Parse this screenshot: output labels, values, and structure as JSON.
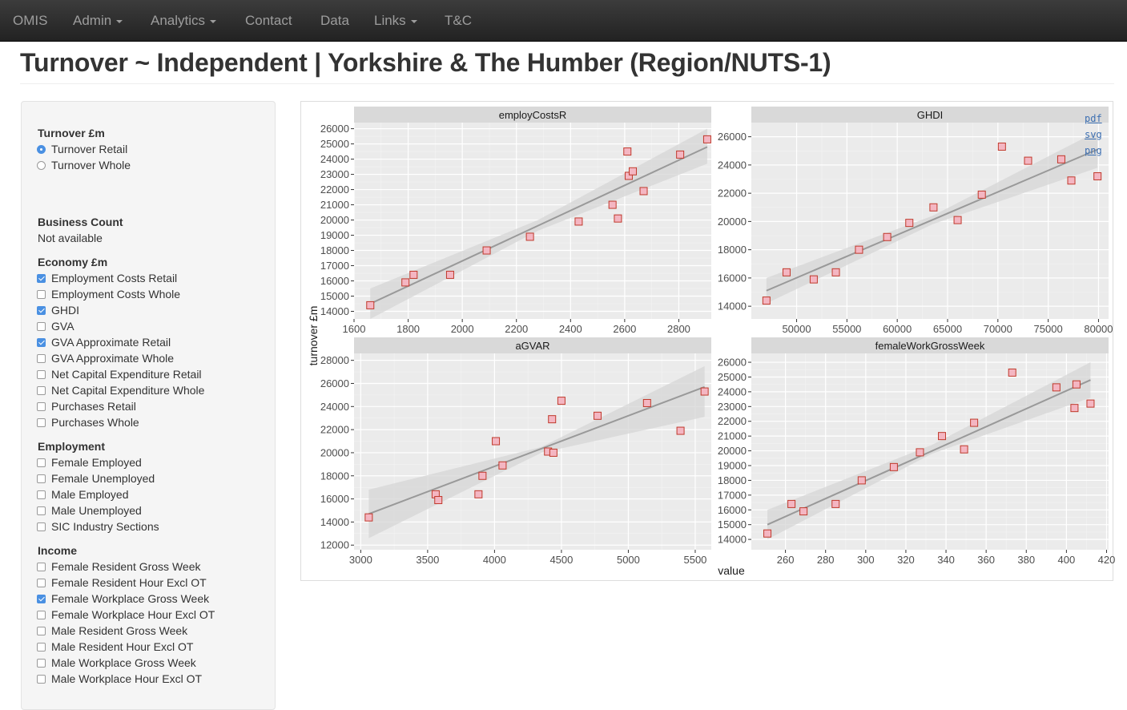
{
  "navbar": {
    "items": [
      {
        "label": "OMIS",
        "dropdown": false
      },
      {
        "label": "Admin",
        "dropdown": true
      },
      {
        "label": "Analytics",
        "dropdown": true
      },
      {
        "label": "Contact",
        "dropdown": false
      },
      {
        "label": "Data",
        "dropdown": false
      },
      {
        "label": "Links",
        "dropdown": true
      },
      {
        "label": "T&C",
        "dropdown": false
      }
    ]
  },
  "page_title": "Turnover ~ Independent | Yorkshire & The Humber (Region/NUTS-1)",
  "sidebar": {
    "turnover": {
      "heading": "Turnover £m",
      "options": [
        {
          "label": "Turnover Retail",
          "selected": true
        },
        {
          "label": "Turnover Whole",
          "selected": false
        }
      ]
    },
    "business_count": {
      "heading": "Business Count",
      "note": "Not available"
    },
    "economy": {
      "heading": "Economy £m",
      "options": [
        {
          "label": "Employment Costs Retail",
          "checked": true
        },
        {
          "label": "Employment Costs Whole",
          "checked": false
        },
        {
          "label": "GHDI",
          "checked": true
        },
        {
          "label": "GVA",
          "checked": false
        },
        {
          "label": "GVA Approximate Retail",
          "checked": true
        },
        {
          "label": "GVA Approximate Whole",
          "checked": false
        },
        {
          "label": "Net Capital Expenditure Retail",
          "checked": false
        },
        {
          "label": "Net Capital Expenditure Whole",
          "checked": false
        },
        {
          "label": "Purchases Retail",
          "checked": false
        },
        {
          "label": "Purchases Whole",
          "checked": false
        }
      ]
    },
    "employment": {
      "heading": "Employment",
      "options": [
        {
          "label": "Female Employed",
          "checked": false
        },
        {
          "label": "Female Unemployed",
          "checked": false
        },
        {
          "label": "Male Employed",
          "checked": false
        },
        {
          "label": "Male Unemployed",
          "checked": false
        },
        {
          "label": "SIC Industry Sections",
          "checked": false
        }
      ]
    },
    "income": {
      "heading": "Income",
      "options": [
        {
          "label": "Female Resident Gross Week",
          "checked": false
        },
        {
          "label": "Female Resident Hour Excl OT",
          "checked": false
        },
        {
          "label": "Female Workplace Gross Week",
          "checked": true
        },
        {
          "label": "Female Workplace Hour Excl OT",
          "checked": false
        },
        {
          "label": "Male Resident Gross Week",
          "checked": false
        },
        {
          "label": "Male Resident Hour Excl OT",
          "checked": false
        },
        {
          "label": "Male Workplace Gross Week",
          "checked": false
        },
        {
          "label": "Male Workplace Hour Excl OT",
          "checked": false
        }
      ]
    }
  },
  "downloads": {
    "pdf": "pdf",
    "svg": "svg",
    "png": "png"
  },
  "chart_data": {
    "type": "scatter",
    "xlabel": "value",
    "ylabel": "turnover £m",
    "point_fill": "#f4b6c2",
    "point_stroke": "#c0392b",
    "line_color": "#999999",
    "band_color": "#d5d5d5",
    "panel_bg": "#ebebeb",
    "strip_bg": "#d9d9d9",
    "grid": true,
    "panels": [
      {
        "title": "employCostsR",
        "xlim": [
          1600,
          2920
        ],
        "ylim": [
          13500,
          26400
        ],
        "xticks": [
          1600,
          1800,
          2000,
          2200,
          2400,
          2600,
          2800
        ],
        "yticks": [
          14000,
          15000,
          16000,
          17000,
          18000,
          19000,
          20000,
          21000,
          22000,
          23000,
          24000,
          25000,
          26000
        ],
        "x": [
          1660,
          1790,
          1820,
          1955,
          2090,
          2250,
          2430,
          2555,
          2575,
          2610,
          2615,
          2630,
          2670,
          2805,
          2905
        ],
        "y": [
          14400,
          15900,
          16400,
          16400,
          18000,
          18900,
          19900,
          21000,
          20100,
          24500,
          22900,
          23200,
          21900,
          24300,
          25300
        ],
        "fit": [
          [
            1660,
            14500
          ],
          [
            2905,
            24800
          ]
        ],
        "band": [
          [
            1660,
            13500,
            15500
          ],
          [
            2280,
            19300,
            20000
          ],
          [
            2905,
            23700,
            26000
          ]
        ]
      },
      {
        "title": "GHDI",
        "xlim": [
          45500,
          81000
        ],
        "ylim": [
          13100,
          27000
        ],
        "xticks": [
          50000,
          55000,
          60000,
          65000,
          70000,
          75000,
          80000
        ],
        "yticks": [
          14000,
          16000,
          18000,
          20000,
          22000,
          24000,
          26000
        ],
        "x": [
          47000,
          49000,
          51700,
          53900,
          56200,
          59000,
          61200,
          63600,
          66000,
          68400,
          70400,
          73000,
          76300,
          77300,
          79900
        ],
        "y": [
          14400,
          16400,
          15900,
          16400,
          18000,
          18900,
          19900,
          21000,
          20100,
          21900,
          25300,
          24300,
          24400,
          22900,
          23200
        ],
        "fit": [
          [
            47000,
            15100
          ],
          [
            79900,
            25100
          ]
        ],
        "band": [
          [
            47000,
            14200,
            16000
          ],
          [
            63500,
            19800,
            20400
          ],
          [
            79900,
            23800,
            26400
          ]
        ]
      },
      {
        "title": "aGVAR",
        "xlim": [
          2950,
          5620
        ],
        "ylim": [
          11600,
          28600
        ],
        "xticks": [
          3000,
          3500,
          4000,
          4500,
          5000,
          5500
        ],
        "yticks": [
          12000,
          14000,
          16000,
          18000,
          20000,
          22000,
          24000,
          26000,
          28000
        ],
        "x": [
          3060,
          3560,
          3580,
          3880,
          3910,
          4010,
          4060,
          4400,
          4440,
          4430,
          4500,
          4770,
          5140,
          5390,
          5570
        ],
        "y": [
          14400,
          16400,
          15900,
          16400,
          18000,
          21000,
          18900,
          20100,
          20000,
          22900,
          24500,
          23200,
          24300,
          21900,
          25300
        ],
        "fit": [
          [
            3060,
            14700
          ],
          [
            5570,
            25700
          ]
        ],
        "band": [
          [
            3060,
            12600,
            16800
          ],
          [
            4350,
            20000,
            20500
          ],
          [
            5570,
            23100,
            27500
          ]
        ]
      },
      {
        "title": "femaleWorkGrossWeek",
        "xlim": [
          243,
          421
        ],
        "ylim": [
          13300,
          26600
        ],
        "xticks": [
          260,
          280,
          300,
          320,
          340,
          360,
          380,
          400,
          420
        ],
        "yticks": [
          14000,
          15000,
          16000,
          17000,
          18000,
          19000,
          20000,
          21000,
          22000,
          23000,
          24000,
          25000,
          26000
        ],
        "x": [
          251,
          263,
          269,
          285,
          298,
          314,
          327,
          338,
          349,
          354,
          373,
          395,
          404,
          405,
          412
        ],
        "y": [
          14400,
          16400,
          15900,
          16400,
          18000,
          18900,
          19900,
          21000,
          20100,
          21900,
          25300,
          24300,
          22900,
          24500,
          23200
        ],
        "fit": [
          [
            251,
            15000
          ],
          [
            412,
            24800
          ]
        ],
        "band": [
          [
            251,
            14000,
            16000
          ],
          [
            333,
            19800,
            20400
          ],
          [
            412,
            23600,
            26000
          ]
        ]
      }
    ]
  }
}
